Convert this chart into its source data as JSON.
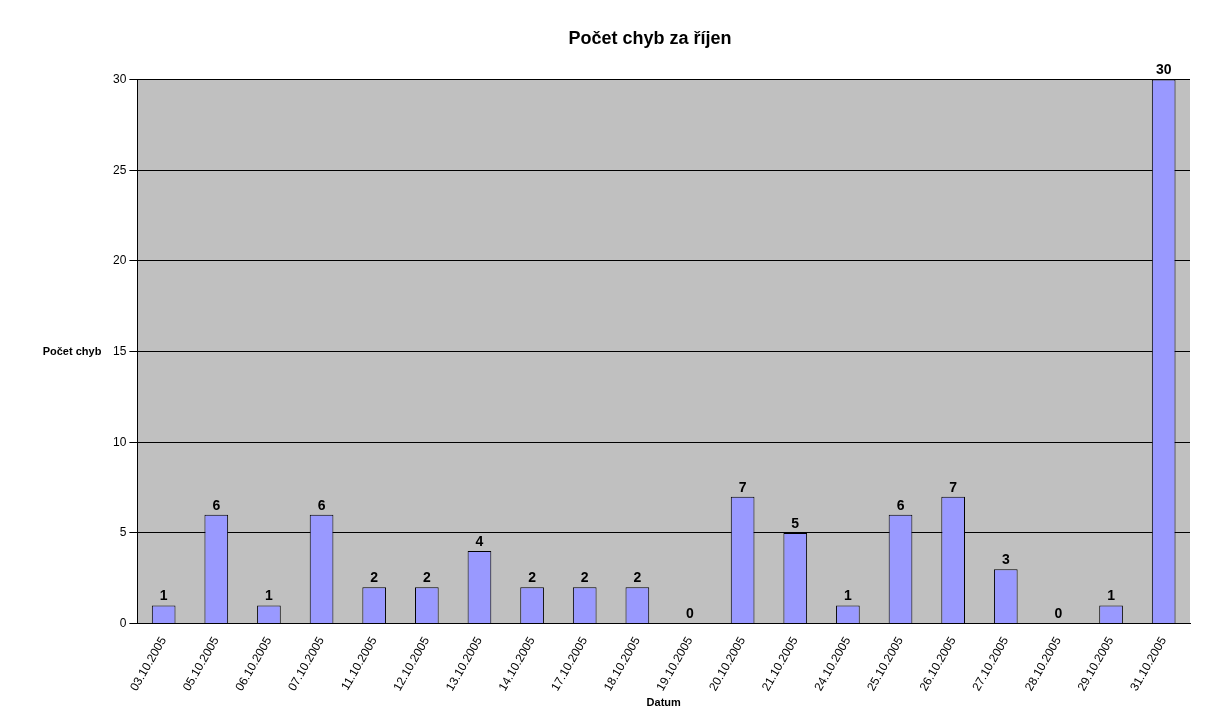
{
  "chart_data": {
    "type": "bar",
    "title": "Počet chyb za říjen",
    "xlabel": "Datum",
    "ylabel": "Počet chyb",
    "categories": [
      "03.10.2005",
      "05.10.2005",
      "06.10.2005",
      "07.10.2005",
      "11.10.2005",
      "12.10.2005",
      "13.10.2005",
      "14.10.2005",
      "17.10.2005",
      "18.10.2005",
      "19.10.2005",
      "20.10.2005",
      "21.10.2005",
      "24.10.2005",
      "25.10.2005",
      "26.10.2005",
      "27.10.2005",
      "28.10.2005",
      "29.10.2005",
      "31.10.2005"
    ],
    "values": [
      1,
      6,
      1,
      6,
      2,
      2,
      4,
      2,
      2,
      2,
      0,
      7,
      5,
      1,
      6,
      7,
      3,
      0,
      1,
      30
    ],
    "color": "#9999ff",
    "ylim": [
      0,
      30
    ],
    "yticks": [
      0,
      5,
      10,
      15,
      20,
      25,
      30
    ],
    "grid": "y",
    "data_labels": true,
    "legend": false
  }
}
